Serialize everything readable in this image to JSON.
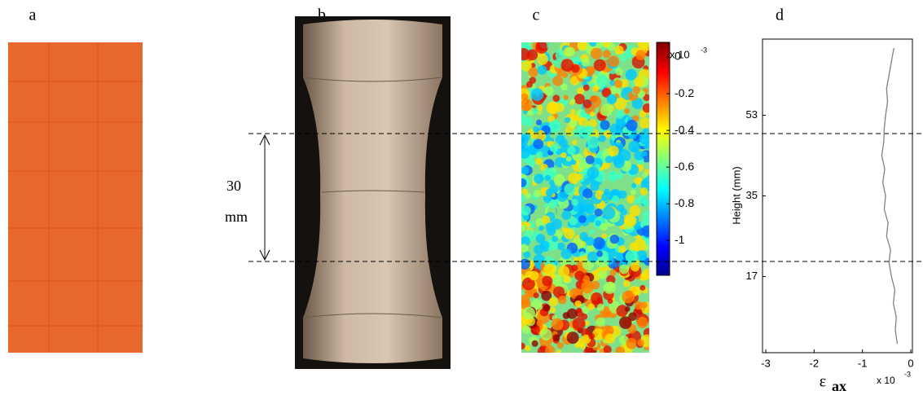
{
  "panels": {
    "a": "a",
    "b": "b",
    "c": "c",
    "d": "d"
  },
  "annotation": {
    "length": "30",
    "unit": "mm"
  },
  "colorbar": {
    "clim": [
      -1.19,
      0.08
    ],
    "ticks": [
      0,
      -0.2,
      -0.4,
      -0.6,
      -0.8,
      -1
    ],
    "exponent_base": "x 10",
    "exponent": "-3"
  },
  "chart_data": {
    "type": "line",
    "y_label": "Height (mm)",
    "x_label": "ε",
    "x_label_sub": "ax",
    "x_exponent_base": "x 10",
    "x_exponent": "-3",
    "xlim": [
      -3,
      0
    ],
    "xticks": [
      -3,
      -2,
      -1,
      0
    ],
    "ylim": [
      0,
      70
    ],
    "yticks": [
      17,
      35,
      53
    ],
    "color": "#808080",
    "y": [
      2,
      5,
      8,
      11,
      14,
      17,
      20,
      23,
      26,
      29,
      32,
      35,
      38,
      41,
      44,
      47,
      50,
      53,
      56,
      59,
      62,
      65,
      68
    ],
    "values": [
      -0.28,
      -0.32,
      -0.3,
      -0.36,
      -0.33,
      -0.4,
      -0.45,
      -0.42,
      -0.5,
      -0.47,
      -0.55,
      -0.52,
      -0.58,
      -0.54,
      -0.6,
      -0.56,
      -0.55,
      -0.52,
      -0.48,
      -0.5,
      -0.45,
      -0.4,
      -0.35
    ]
  }
}
